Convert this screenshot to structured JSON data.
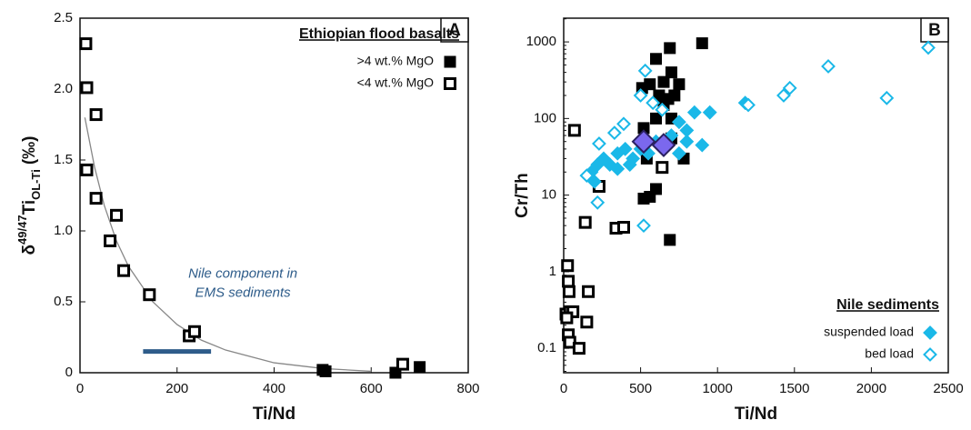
{
  "chart_data": [
    {
      "type": "scatter",
      "panel_label": "A",
      "x_label": "Ti/Nd",
      "y_label": {
        "delta": "δ",
        "sup": "49/47",
        "main": "Ti",
        "sub": "OL-Ti",
        "unit": "(‰)"
      },
      "xlim": [
        0,
        800
      ],
      "xticks": [
        0,
        200,
        400,
        600,
        800
      ],
      "ylim": [
        0,
        2.5
      ],
      "yticks": [
        0,
        0.5,
        {
          "value": 1,
          "label": "1.0"
        },
        1.5,
        {
          "value": 2,
          "label": "2.0"
        },
        2.5
      ],
      "legend": {
        "title": "Ethiopian flood basalts",
        "corner": "top-right"
      },
      "series": [
        {
          "kind": "line",
          "color": "#888888",
          "x": [
            10,
            30,
            50,
            75,
            100,
            150,
            200,
            250,
            300,
            400,
            500,
            600
          ],
          "values": [
            1.8,
            1.45,
            1.18,
            0.93,
            0.75,
            0.5,
            0.34,
            0.23,
            0.16,
            0.07,
            0.03,
            0.01
          ]
        },
        {
          "name": ">4 wt.% MgO",
          "marker": "square",
          "filled": true,
          "color": "#000000",
          "x": [
            500,
            506,
            650,
            700
          ],
          "values": [
            0.02,
            0.01,
            0.0,
            0.04
          ]
        },
        {
          "name": "<4 wt.% MgO",
          "marker": "square",
          "filled": false,
          "color": "#000000",
          "x": [
            12,
            14,
            33,
            14,
            33,
            75,
            62,
            90,
            143,
            225,
            236,
            665
          ],
          "values": [
            2.32,
            2.01,
            1.82,
            1.43,
            1.23,
            1.11,
            0.93,
            0.72,
            0.55,
            0.26,
            0.29,
            0.06
          ]
        }
      ],
      "nile_bar": {
        "x": [
          130,
          270
        ],
        "y": 0.15,
        "color": "#2e5c8a",
        "lines": [
          "Nile component in",
          "EMS sediments"
        ]
      }
    },
    {
      "type": "scatter",
      "panel_label": "B",
      "log_y": true,
      "x_label": "Ti/Nd",
      "y_label": "Cr/Th",
      "xlim": [
        0,
        2500
      ],
      "xticks": [
        0,
        500,
        1000,
        1500,
        2000,
        2500
      ],
      "ylim": [
        0.048,
        2040
      ],
      "yticks": [
        0.1,
        1,
        10,
        100,
        1000
      ],
      "legend": {
        "title": "Nile sediments",
        "corner": "bottom-right"
      },
      "series": [
        {
          "marker": "square",
          "filled": true,
          "color": "#000000",
          "x": [
            510,
            560,
            600,
            690,
            900,
            650,
            700,
            720,
            750,
            650,
            700,
            600,
            520,
            540,
            600,
            520,
            560,
            780,
            690,
            700,
            620,
            680
          ],
          "values": [
            250,
            280,
            600,
            830,
            960,
            300,
            400,
            200,
            280,
            150,
            100,
            100,
            75,
            30,
            12,
            9,
            9.5,
            30,
            2.6,
            55,
            200,
            180
          ]
        },
        {
          "marker": "square",
          "filled": false,
          "color": "#000000",
          "x": [
            70,
            230,
            140,
            340,
            390,
            25,
            30,
            35,
            160,
            15,
            40,
            60,
            20,
            30,
            40,
            150,
            100,
            640
          ],
          "values": [
            70,
            13,
            4.4,
            3.7,
            3.8,
            1.2,
            0.75,
            0.55,
            0.55,
            0.28,
            0.3,
            0.3,
            0.25,
            0.15,
            0.12,
            0.22,
            0.1,
            23
          ]
        },
        {
          "name": "suspended load",
          "marker": "diamond",
          "filled": true,
          "color": "#1ab8e8",
          "x": [
            200,
            180,
            220,
            260,
            300,
            350,
            400,
            450,
            500,
            550,
            600,
            650,
            700,
            750,
            800,
            850,
            900,
            950,
            1180,
            800,
            750,
            350,
            430
          ],
          "values": [
            15,
            20,
            25,
            30,
            25,
            35,
            40,
            30,
            40,
            35,
            50,
            40,
            60,
            90,
            50,
            120,
            45,
            120,
            160,
            70,
            35,
            22,
            25
          ]
        },
        {
          "name": "bed load",
          "marker": "diamond",
          "filled": false,
          "color": "#1ab8e8",
          "x": [
            150,
            220,
            230,
            330,
            390,
            500,
            530,
            580,
            640,
            520,
            1200,
            1430,
            1470,
            1720,
            2100,
            2370
          ],
          "values": [
            18,
            8,
            47,
            65,
            85,
            200,
            420,
            160,
            130,
            4,
            150,
            200,
            250,
            480,
            185,
            840
          ]
        },
        {
          "marker": "diamond",
          "filled": true,
          "big": true,
          "color": "#7b68ee",
          "x": [
            520,
            650
          ],
          "values": [
            50,
            45
          ]
        }
      ]
    }
  ]
}
